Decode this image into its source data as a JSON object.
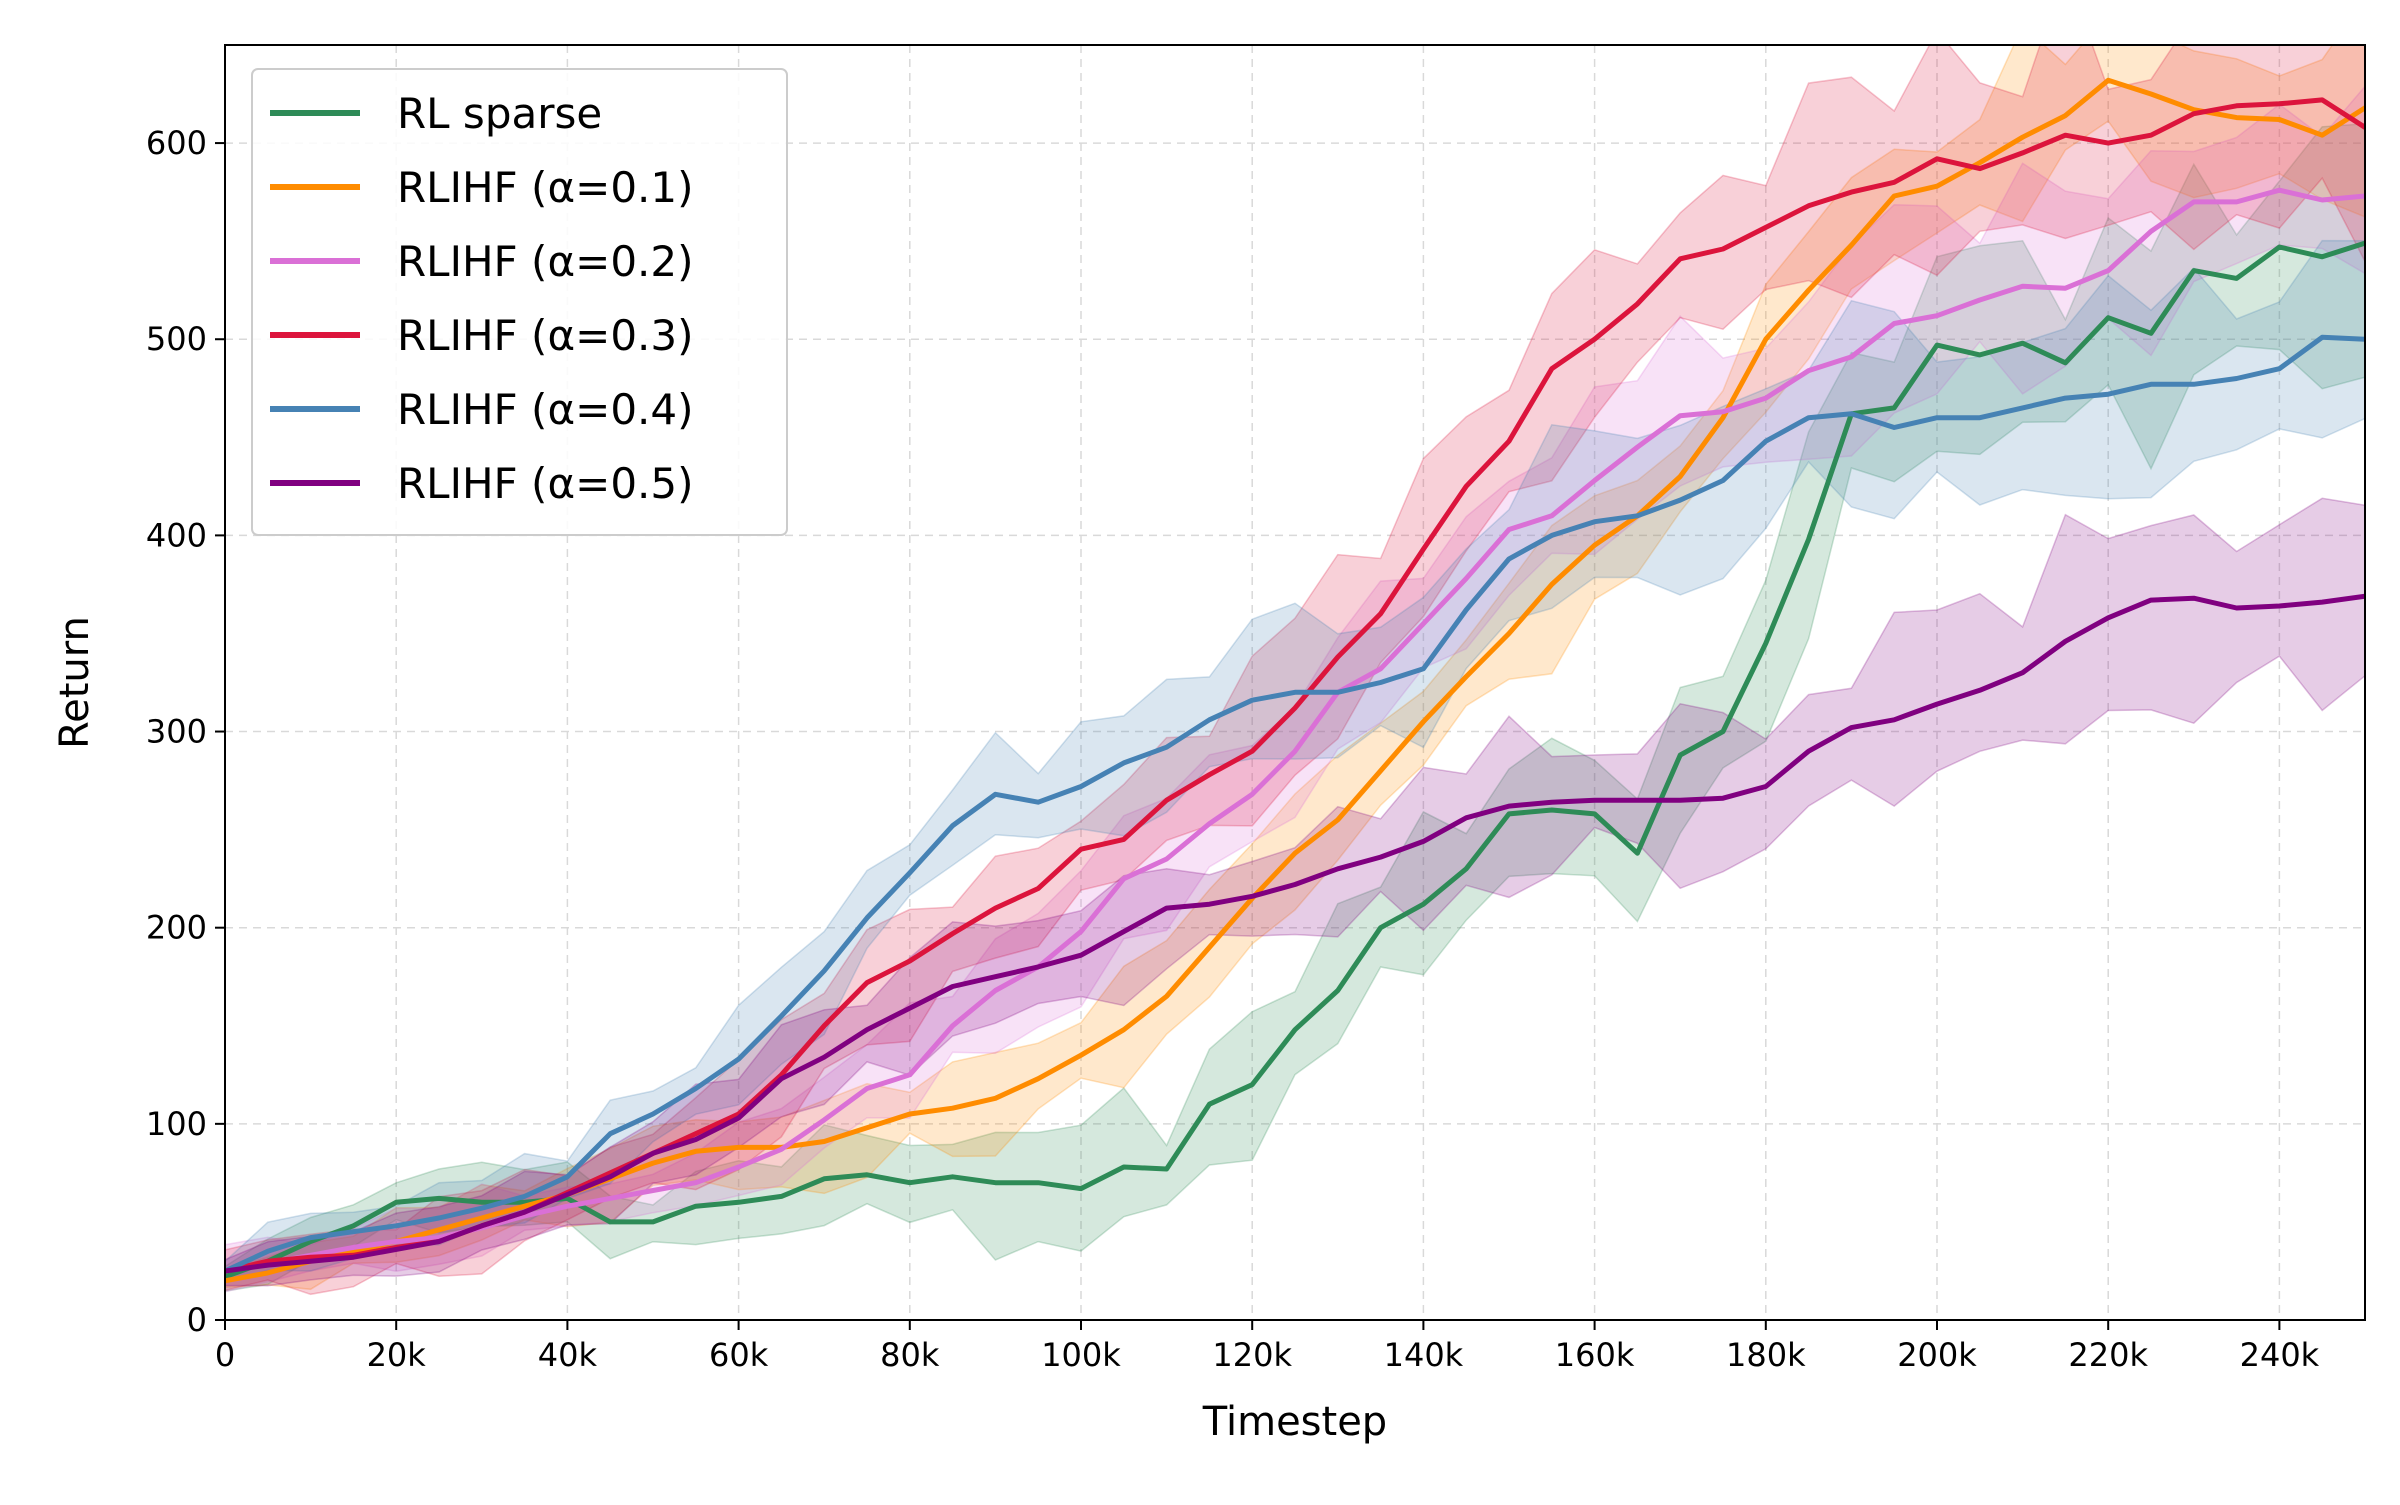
{
  "chart_data": {
    "type": "line",
    "xlabel": "Timestep",
    "ylabel": "Return",
    "xlim": [
      0,
      250000
    ],
    "ylim": [
      0,
      650
    ],
    "x_ticks": [
      0,
      20000,
      40000,
      60000,
      80000,
      100000,
      120000,
      140000,
      160000,
      180000,
      200000,
      220000,
      240000
    ],
    "x_tick_labels": [
      "0",
      "20k",
      "40k",
      "60k",
      "80k",
      "100k",
      "120k",
      "140k",
      "160k",
      "180k",
      "200k",
      "220k",
      "240k"
    ],
    "y_ticks": [
      0,
      100,
      200,
      300,
      400,
      500,
      600
    ],
    "y_tick_labels": [
      "0",
      "100",
      "200",
      "300",
      "400",
      "500",
      "600"
    ],
    "grid": true,
    "legend_position": "upper-left",
    "x": [
      0,
      5000,
      10000,
      15000,
      20000,
      25000,
      30000,
      35000,
      40000,
      45000,
      50000,
      55000,
      60000,
      65000,
      70000,
      75000,
      80000,
      85000,
      90000,
      95000,
      100000,
      105000,
      110000,
      115000,
      120000,
      125000,
      130000,
      135000,
      140000,
      145000,
      150000,
      155000,
      160000,
      165000,
      170000,
      175000,
      180000,
      185000,
      190000,
      195000,
      200000,
      205000,
      210000,
      215000,
      220000,
      225000,
      230000,
      235000,
      240000,
      245000,
      250000
    ],
    "series": [
      {
        "name": "RL sparse",
        "color": "#2e8b57",
        "band_spread": 35,
        "values": [
          22,
          30,
          40,
          48,
          60,
          62,
          60,
          60,
          62,
          50,
          50,
          58,
          60,
          63,
          72,
          74,
          70,
          73,
          70,
          70,
          67,
          78,
          77,
          110,
          120,
          148,
          168,
          200,
          212,
          230,
          258,
          260,
          258,
          238,
          288,
          300,
          345,
          398,
          462,
          465,
          497,
          492,
          498,
          488,
          511,
          503,
          535,
          531,
          547,
          542,
          549
        ]
      },
      {
        "name": "RLIHF (α=0.1)",
        "color": "#ff8c00",
        "band_spread": 30,
        "values": [
          20,
          24,
          30,
          35,
          40,
          46,
          52,
          58,
          64,
          72,
          80,
          86,
          88,
          88,
          91,
          98,
          105,
          108,
          113,
          123,
          135,
          148,
          165,
          190,
          215,
          238,
          255,
          280,
          305,
          328,
          350,
          375,
          395,
          410,
          430,
          460,
          500,
          525,
          548,
          573,
          578,
          590,
          603,
          614,
          632,
          625,
          617,
          613,
          612,
          604,
          618
        ]
      },
      {
        "name": "RLIHF (α=0.2)",
        "color": "#da70d6",
        "band_spread": 35,
        "values": [
          25,
          29,
          33,
          37,
          40,
          42,
          47,
          53,
          58,
          62,
          66,
          70,
          78,
          87,
          102,
          118,
          125,
          150,
          168,
          180,
          198,
          225,
          235,
          253,
          268,
          290,
          320,
          332,
          355,
          378,
          403,
          410,
          428,
          445,
          461,
          463,
          470,
          484,
          491,
          508,
          512,
          520,
          527,
          526,
          535,
          555,
          570,
          570,
          576,
          571,
          573
        ]
      },
      {
        "name": "RLIHF (α=0.3)",
        "color": "#dc143c",
        "band_spread": 40,
        "values": [
          25,
          30,
          32,
          33,
          37,
          40,
          48,
          55,
          65,
          75,
          85,
          95,
          105,
          125,
          150,
          172,
          183,
          197,
          210,
          220,
          240,
          245,
          265,
          278,
          290,
          312,
          338,
          360,
          393,
          425,
          448,
          485,
          500,
          518,
          541,
          546,
          557,
          568,
          575,
          580,
          592,
          587,
          595,
          604,
          600,
          604,
          615,
          619,
          620,
          622,
          608
        ]
      },
      {
        "name": "RLIHF (α=0.4)",
        "color": "#4682b4",
        "band_spread": 35,
        "values": [
          25,
          35,
          42,
          45,
          48,
          52,
          57,
          63,
          73,
          95,
          105,
          118,
          133,
          155,
          178,
          205,
          228,
          252,
          268,
          264,
          272,
          284,
          292,
          306,
          316,
          320,
          320,
          325,
          332,
          362,
          388,
          400,
          407,
          410,
          418,
          428,
          448,
          460,
          462,
          455,
          460,
          460,
          465,
          470,
          472,
          477,
          477,
          480,
          485,
          501,
          500
        ]
      },
      {
        "name": "RLIHF (α=0.5)",
        "color": "#800080",
        "band_spread": 35,
        "values": [
          25,
          28,
          30,
          32,
          36,
          40,
          48,
          55,
          64,
          73,
          85,
          92,
          103,
          123,
          134,
          148,
          159,
          170,
          175,
          180,
          186,
          198,
          210,
          212,
          216,
          222,
          230,
          236,
          244,
          256,
          262,
          264,
          265,
          265,
          265,
          266,
          272,
          290,
          302,
          306,
          314,
          321,
          330,
          346,
          358,
          367,
          368,
          363,
          364,
          366,
          369
        ]
      }
    ]
  }
}
